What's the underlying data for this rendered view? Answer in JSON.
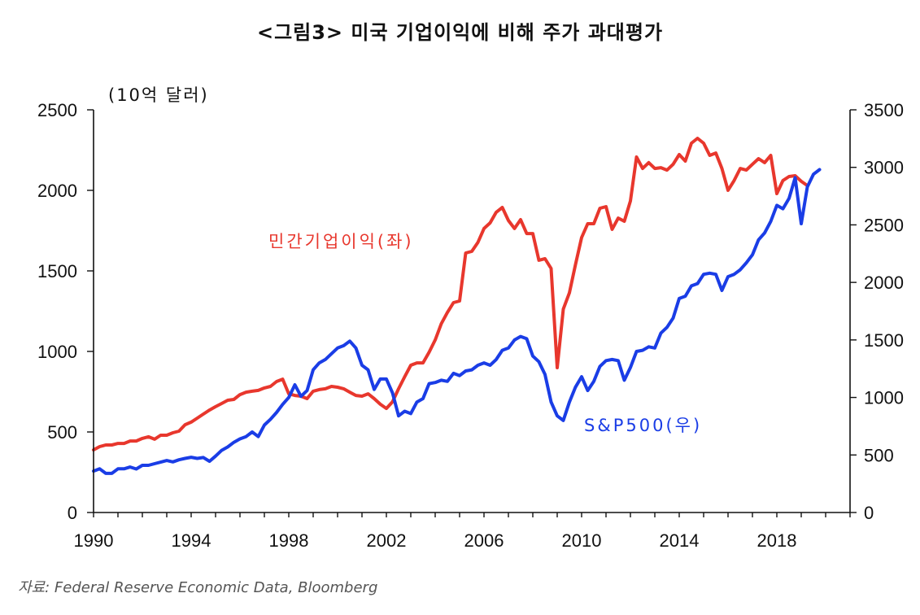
{
  "chart_data": {
    "type": "line",
    "title": "<그림3> 미국 기업이익에 비해 주가 과대평가",
    "ylabel_left": "(10억 달러)",
    "source_note": "자료: Federal Reserve Economic Data, Bloomberg",
    "xlim": [
      1990,
      2021
    ],
    "ylim_left": [
      0,
      2500
    ],
    "ylim_right": [
      0,
      3500
    ],
    "grid": false,
    "x_ticks": [
      1990,
      1994,
      1998,
      2002,
      2006,
      2010,
      2014,
      2018
    ],
    "y_ticks_left": [
      0,
      500,
      1000,
      1500,
      2000,
      2500
    ],
    "y_ticks_right": [
      0,
      500,
      1000,
      1500,
      2000,
      2500,
      3000,
      3500
    ],
    "series": [
      {
        "name": "민간기업이익(좌)",
        "axis": "left",
        "color": "#e8372d",
        "x": [
          1990,
          1990.25,
          1990.5,
          1990.75,
          1991,
          1991.25,
          1991.5,
          1991.75,
          1992,
          1992.25,
          1992.5,
          1992.75,
          1993,
          1993.25,
          1993.5,
          1993.75,
          1994,
          1994.25,
          1994.5,
          1994.75,
          1995,
          1995.25,
          1995.5,
          1995.75,
          1996,
          1996.25,
          1996.5,
          1996.75,
          1997,
          1997.25,
          1997.5,
          1997.75,
          1998,
          1998.25,
          1998.5,
          1998.75,
          1999,
          1999.25,
          1999.5,
          1999.75,
          2000,
          2000.25,
          2000.5,
          2000.75,
          2001,
          2001.25,
          2001.5,
          2001.75,
          2002,
          2002.25,
          2002.5,
          2002.75,
          2003,
          2003.25,
          2003.5,
          2003.75,
          2004,
          2004.25,
          2004.5,
          2004.75,
          2005,
          2005.25,
          2005.5,
          2005.75,
          2006,
          2006.25,
          2006.5,
          2006.75,
          2007,
          2007.25,
          2007.5,
          2007.75,
          2008,
          2008.25,
          2008.5,
          2008.75,
          2009,
          2009.25,
          2009.5,
          2009.75,
          2010,
          2010.25,
          2010.5,
          2010.75,
          2011,
          2011.25,
          2011.5,
          2011.75,
          2012,
          2012.25,
          2012.5,
          2012.75,
          2013,
          2013.25,
          2013.5,
          2013.75,
          2014,
          2014.25,
          2014.5,
          2014.75,
          2015,
          2015.25,
          2015.5,
          2015.75,
          2016,
          2016.25,
          2016.5,
          2016.75,
          2017,
          2017.25,
          2017.5,
          2017.75,
          2018,
          2018.25,
          2018.5,
          2018.75,
          2019,
          2019.25
        ],
        "values": [
          389,
          409,
          419,
          419,
          429,
          429,
          444,
          444,
          460,
          470,
          455,
          480,
          480,
          495,
          505,
          545,
          561,
          586,
          611,
          636,
          657,
          677,
          697,
          702,
          732,
          747,
          753,
          758,
          773,
          783,
          813,
          828,
          737,
          727,
          722,
          707,
          753,
          763,
          768,
          783,
          778,
          768,
          747,
          727,
          722,
          737,
          707,
          672,
          646,
          687,
          768,
          843,
          914,
          929,
          929,
          995,
          1071,
          1172,
          1242,
          1303,
          1313,
          1611,
          1621,
          1677,
          1763,
          1798,
          1864,
          1894,
          1813,
          1763,
          1818,
          1732,
          1732,
          1566,
          1576,
          1515,
          899,
          1263,
          1364,
          1540,
          1707,
          1793,
          1793,
          1889,
          1899,
          1758,
          1828,
          1808,
          1934,
          2207,
          2136,
          2172,
          2136,
          2141,
          2126,
          2162,
          2222,
          2182,
          2293,
          2323,
          2293,
          2217,
          2232,
          2136,
          2000,
          2061,
          2136,
          2126,
          2162,
          2197,
          2172,
          2217,
          1980,
          2061,
          2086,
          2091,
          2056,
          2030
        ]
      },
      {
        "name": "S&P500(우)",
        "axis": "right",
        "color": "#1a3de6",
        "x": [
          1990,
          1990.25,
          1990.5,
          1990.75,
          1991,
          1991.25,
          1991.5,
          1991.75,
          1992,
          1992.25,
          1992.5,
          1992.75,
          1993,
          1993.25,
          1993.5,
          1993.75,
          1994,
          1994.25,
          1994.5,
          1994.75,
          1995,
          1995.25,
          1995.5,
          1995.75,
          1996,
          1996.25,
          1996.5,
          1996.75,
          1997,
          1997.25,
          1997.5,
          1997.75,
          1998,
          1998.25,
          1998.5,
          1998.75,
          1999,
          1999.25,
          1999.5,
          1999.75,
          2000,
          2000.25,
          2000.5,
          2000.75,
          2001,
          2001.25,
          2001.5,
          2001.75,
          2002,
          2002.25,
          2002.5,
          2002.75,
          2003,
          2003.25,
          2003.5,
          2003.75,
          2004,
          2004.25,
          2004.5,
          2004.75,
          2005,
          2005.25,
          2005.5,
          2005.75,
          2006,
          2006.25,
          2006.5,
          2006.75,
          2007,
          2007.25,
          2007.5,
          2007.75,
          2008,
          2008.25,
          2008.5,
          2008.75,
          2009,
          2009.25,
          2009.5,
          2009.75,
          2010,
          2010.25,
          2010.5,
          2010.75,
          2011,
          2011.25,
          2011.5,
          2011.75,
          2012,
          2012.25,
          2012.5,
          2012.75,
          2013,
          2013.25,
          2013.5,
          2013.75,
          2014,
          2014.25,
          2014.5,
          2014.75,
          2015,
          2015.25,
          2015.5,
          2015.75,
          2016,
          2016.25,
          2016.5,
          2016.75,
          2017,
          2017.25,
          2017.5,
          2017.75,
          2018,
          2018.25,
          2018.5,
          2018.75,
          2019,
          2019.25,
          2019.5,
          2019.75
        ],
        "values": [
          360,
          380,
          340,
          340,
          380,
          380,
          395,
          378,
          410,
          410,
          424,
          438,
          452,
          440,
          458,
          470,
          480,
          470,
          478,
          445,
          490,
          540,
          570,
          610,
          640,
          660,
          700,
          660,
          760,
          810,
          870,
          940,
          1000,
          1110,
          1010,
          1060,
          1240,
          1300,
          1330,
          1380,
          1430,
          1450,
          1490,
          1430,
          1280,
          1240,
          1070,
          1160,
          1160,
          1040,
          840,
          880,
          860,
          960,
          990,
          1120,
          1130,
          1150,
          1140,
          1210,
          1190,
          1230,
          1240,
          1280,
          1300,
          1280,
          1330,
          1410,
          1430,
          1500,
          1530,
          1510,
          1360,
          1310,
          1200,
          960,
          840,
          800,
          960,
          1090,
          1180,
          1060,
          1140,
          1270,
          1320,
          1330,
          1320,
          1150,
          1260,
          1400,
          1410,
          1440,
          1430,
          1560,
          1610,
          1690,
          1860,
          1880,
          1970,
          1990,
          2070,
          2080,
          2070,
          1930,
          2050,
          2070,
          2110,
          2170,
          2240,
          2370,
          2430,
          2530,
          2670,
          2640,
          2730,
          2910,
          2510,
          2830,
          2940,
          2980
        ]
      }
    ]
  }
}
